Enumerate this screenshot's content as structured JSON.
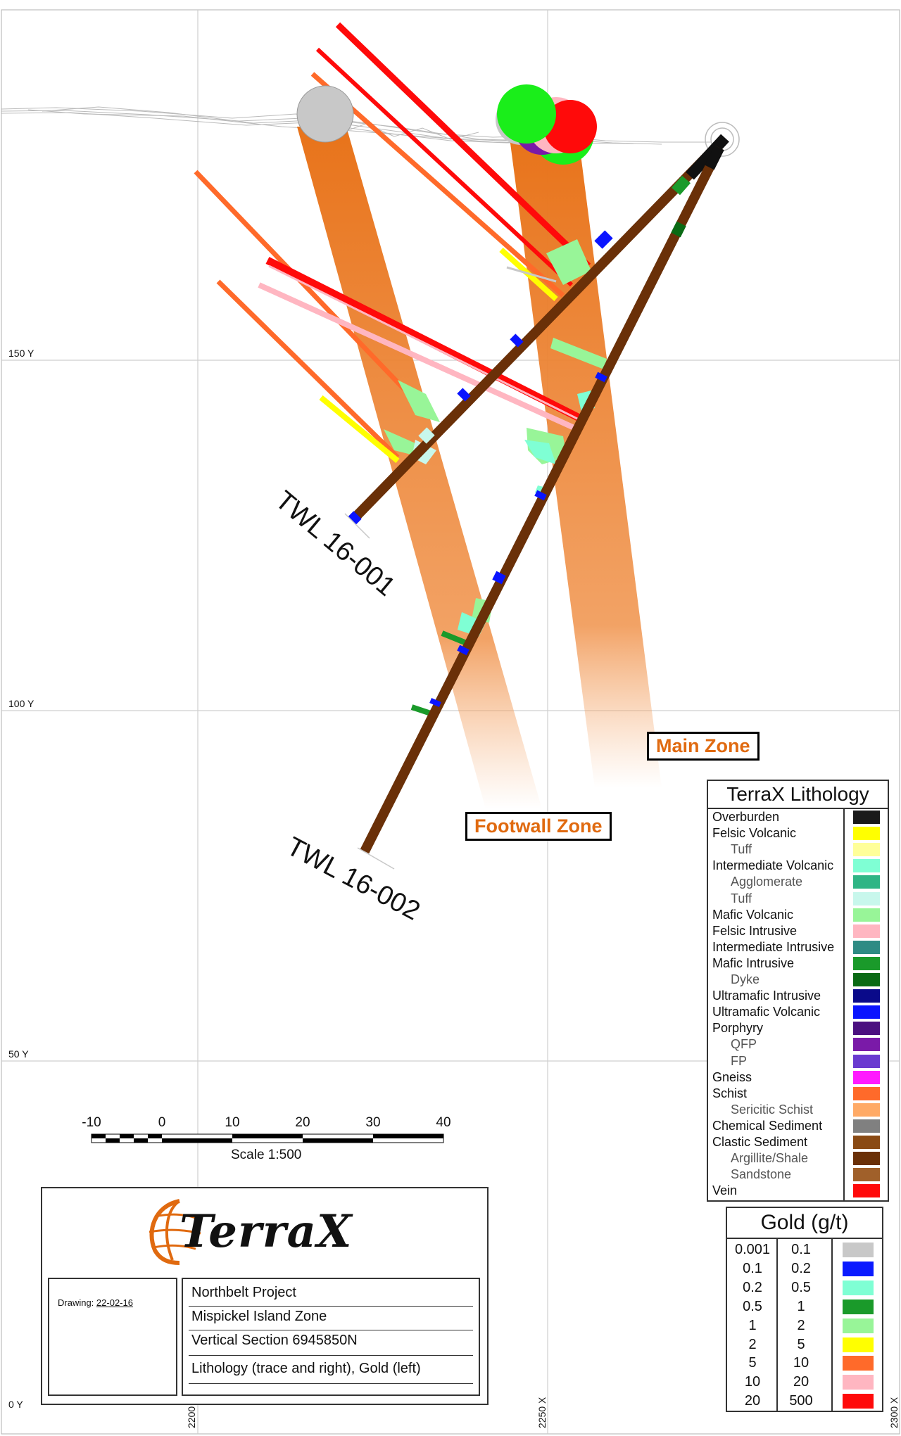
{
  "grid": {
    "y_labels": [
      "150 Y",
      "100 Y",
      "50 Y",
      "0 Y"
    ],
    "x_labels": [
      "2200",
      "2250 X",
      "2300 X"
    ]
  },
  "zones": {
    "main": "Main Zone",
    "footwall": "Footwall Zone"
  },
  "holes": [
    {
      "id": "TWL 16-001"
    },
    {
      "id": "TWL 16-002"
    }
  ],
  "lithology_legend": {
    "title": "TerraX Lithology",
    "items": [
      {
        "label": "Overburden",
        "color": "#1a1a1a",
        "sub": false
      },
      {
        "label": "Felsic Volcanic",
        "color": "#ffff00",
        "sub": false
      },
      {
        "label": "Tuff",
        "color": "#ffff99",
        "sub": true
      },
      {
        "label": "Intermediate Volcanic",
        "color": "#7fffd4",
        "sub": false
      },
      {
        "label": "Agglomerate",
        "color": "#2fb585",
        "sub": true
      },
      {
        "label": "Tuff",
        "color": "#c8f7ec",
        "sub": true
      },
      {
        "label": "Mafic Volcanic",
        "color": "#98f598",
        "sub": false
      },
      {
        "label": "Felsic Intrusive",
        "color": "#ffb6c1",
        "sub": false
      },
      {
        "label": "Intermediate Intrusive",
        "color": "#2e8b84",
        "sub": false
      },
      {
        "label": "Mafic Intrusive",
        "color": "#1a9a2a",
        "sub": false
      },
      {
        "label": "Dyke",
        "color": "#0a6a14",
        "sub": true
      },
      {
        "label": "Ultramafic Intrusive",
        "color": "#0a0a8a",
        "sub": false
      },
      {
        "label": "Ultramafic Volcanic",
        "color": "#0a14ff",
        "sub": false
      },
      {
        "label": "Porphyry",
        "color": "#4b1080",
        "sub": false
      },
      {
        "label": "QFP",
        "color": "#7a1aa8",
        "sub": true
      },
      {
        "label": "FP",
        "color": "#6a3ad0",
        "sub": true
      },
      {
        "label": "Gneiss",
        "color": "#ff1aff",
        "sub": false
      },
      {
        "label": "Schist",
        "color": "#ff6a2a",
        "sub": false
      },
      {
        "label": "Sericitic Schist",
        "color": "#ffaa66",
        "sub": true
      },
      {
        "label": "Chemical Sediment",
        "color": "#808080",
        "sub": false
      },
      {
        "label": "Clastic Sediment",
        "color": "#8a4a14",
        "sub": false
      },
      {
        "label": "Argillite/Shale",
        "color": "#6a3008",
        "sub": true
      },
      {
        "label": "Sandstone",
        "color": "#a0602a",
        "sub": true
      },
      {
        "label": "Vein",
        "color": "#ff0a0a",
        "sub": false
      }
    ]
  },
  "gold_legend": {
    "title": "Gold (g/t)",
    "items": [
      {
        "from": "0.001",
        "to": "0.1",
        "color": "#c8c8c8"
      },
      {
        "from": "0.1",
        "to": "0.2",
        "color": "#0a1aff"
      },
      {
        "from": "0.2",
        "to": "0.5",
        "color": "#7fffd4"
      },
      {
        "from": "0.5",
        "to": "1",
        "color": "#1a9a2a"
      },
      {
        "from": "1",
        "to": "2",
        "color": "#98f598"
      },
      {
        "from": "2",
        "to": "5",
        "color": "#ffff00"
      },
      {
        "from": "5",
        "to": "10",
        "color": "#ff6a2a"
      },
      {
        "from": "10",
        "to": "20",
        "color": "#ffb6c1"
      },
      {
        "from": "20",
        "to": "500",
        "color": "#ff0a0a"
      }
    ]
  },
  "scale": {
    "ticks": [
      "-10",
      "0",
      "10",
      "20",
      "30",
      "40"
    ],
    "caption": "Scale 1:500"
  },
  "title_block": {
    "company": "TerraX",
    "drawing_label": "Drawing:",
    "drawing_date": "22-02-16",
    "lines": [
      "Northbelt Project",
      "Mispickel Island Zone",
      "Vertical Section 6945850N",
      "Lithology (trace and right), Gold (left)"
    ]
  }
}
